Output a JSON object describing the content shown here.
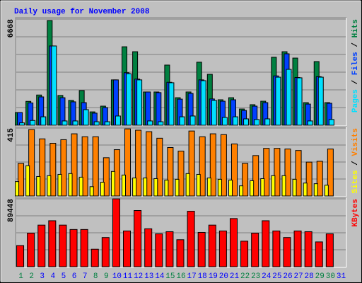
{
  "chart_data": [
    {
      "type": "bar",
      "title": "Daily usage for November 2008",
      "legend_separator": " / ",
      "ylim": [
        0,
        6668
      ],
      "yticks": [
        6668
      ],
      "grid": true,
      "series": [
        {
          "name": "Hits",
          "color": "#008040",
          "values": [
            800,
            1500,
            1900,
            6580,
            1870,
            1560,
            2180,
            840,
            1200,
            2850,
            4930,
            4620,
            2090,
            2090,
            3780,
            1730,
            2090,
            3960,
            3200,
            1600,
            1730,
            1020,
            1290,
            1510,
            4270,
            4620,
            4220,
            1420,
            4000,
            1420,
            null
          ]
        },
        {
          "name": "Files",
          "color": "#0040ff",
          "values": [
            800,
            1400,
            1780,
            4980,
            1730,
            1470,
            1420,
            760,
            1110,
            2850,
            3300,
            2900,
            2090,
            2050,
            2700,
            1640,
            2000,
            2850,
            1650,
            1510,
            1600,
            930,
            1200,
            1420,
            3100,
            4490,
            3000,
            1330,
            3050,
            1380,
            null
          ]
        },
        {
          "name": "Pages",
          "color": "#00e0ff",
          "values": [
            150,
            300,
            530,
            4980,
            270,
            270,
            980,
            220,
            220,
            580,
            3240,
            2850,
            270,
            220,
            2670,
            530,
            580,
            2800,
            1560,
            490,
            530,
            400,
            360,
            400,
            3020,
            3510,
            2980,
            270,
            3020,
            360,
            null
          ]
        }
      ]
    },
    {
      "type": "bar",
      "legend_separator": " / ",
      "ylim": [
        0,
        415
      ],
      "yticks": [
        415
      ],
      "grid": true,
      "series": [
        {
          "name": "Visits",
          "color": "#ff8000",
          "values": [
            199,
            406,
            349,
            322,
            344,
            380,
            362,
            362,
            234,
            283,
            410,
            402,
            393,
            353,
            296,
            274,
            397,
            362,
            380,
            375,
            318,
            199,
            247,
            291,
            291,
            287,
            278,
            207,
            212,
            287,
            null
          ]
        },
        {
          "name": "Sites",
          "color": "#ffff00",
          "values": [
            88,
            185,
            119,
            124,
            132,
            137,
            115,
            57,
            84,
            150,
            128,
            110,
            110,
            106,
            97,
            102,
            137,
            132,
            110,
            102,
            97,
            62,
            93,
            106,
            124,
            124,
            102,
            79,
            75,
            66,
            null
          ]
        }
      ]
    },
    {
      "type": "bar",
      "ylim": [
        0,
        89448
      ],
      "yticks": [
        89448
      ],
      "grid": true,
      "categories": [
        "1",
        "2",
        "3",
        "4",
        "5",
        "6",
        "7",
        "8",
        "9",
        "10",
        "11",
        "12",
        "13",
        "14",
        "15",
        "16",
        "17",
        "18",
        "19",
        "20",
        "21",
        "22",
        "23",
        "24",
        "25",
        "26",
        "27",
        "28",
        "29",
        "30",
        "31"
      ],
      "category_colors": [
        "#008040",
        "#008040",
        "#0000ff",
        "#0000ff",
        "#0000ff",
        "#0000ff",
        "#0000ff",
        "#008040",
        "#008040",
        "#0000ff",
        "#0000ff",
        "#0000ff",
        "#0000ff",
        "#0000ff",
        "#008040",
        "#008040",
        "#0000ff",
        "#0000ff",
        "#0000ff",
        "#0000ff",
        "#0000ff",
        "#008040",
        "#008040",
        "#0000ff",
        "#0000ff",
        "#0000ff",
        "#0000ff",
        "#0000ff",
        "#008040",
        "#008040",
        "#0000ff"
      ],
      "series": [
        {
          "name": "KBytes",
          "color": "#ff0000",
          "values": [
            27890,
            44240,
            54820,
            60590,
            54820,
            49050,
            49050,
            23080,
            38470,
            89448,
            47130,
            74060,
            50010,
            43280,
            46170,
            35590,
            73100,
            45210,
            54820,
            47130,
            63480,
            33660,
            44240,
            60590,
            47130,
            38470,
            47130,
            46170,
            32700,
            43280,
            null
          ]
        }
      ]
    }
  ]
}
